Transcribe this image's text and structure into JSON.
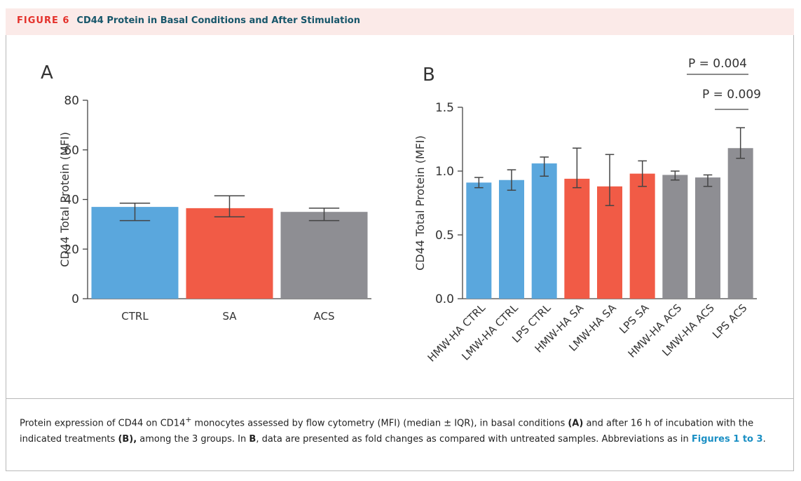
{
  "header": {
    "label": "FIGURE 6",
    "title": "CD44 Protein in Basal Conditions and After Stimulation"
  },
  "chart_data": [
    {
      "type": "bar",
      "title": "A",
      "ylabel": "CD44 Total Protein (MFI)",
      "categories": [
        "CTRL",
        "SA",
        "ACS"
      ],
      "values": [
        37,
        36.5,
        35
      ],
      "q1": [
        31.5,
        33,
        31.5
      ],
      "q3": [
        38.5,
        41.5,
        36.5
      ],
      "colors": [
        "#5aa7dd",
        "#f15b46",
        "#8e8e93"
      ],
      "ylim": [
        0,
        80
      ],
      "yticks": [
        0,
        20,
        40,
        60,
        80
      ]
    },
    {
      "type": "bar",
      "title": "B",
      "ylabel": "CD44 Total Protein (MFI)",
      "categories": [
        "HMW-HA CTRL",
        "LMW-HA CTRL",
        "LPS CTRL",
        "HMW-HA SA",
        "LMW-HA SA",
        "LPS SA",
        "HMW-HA ACS",
        "LMW-HA ACS",
        "LPS ACS"
      ],
      "values": [
        0.91,
        0.93,
        1.06,
        0.94,
        0.88,
        0.98,
        0.97,
        0.95,
        1.18
      ],
      "q1": [
        0.87,
        0.85,
        0.96,
        0.87,
        0.73,
        0.88,
        0.93,
        0.88,
        1.1
      ],
      "q3": [
        0.95,
        1.01,
        1.11,
        1.18,
        1.13,
        1.08,
        1.0,
        0.97,
        1.34
      ],
      "colors": [
        "#5aa7dd",
        "#5aa7dd",
        "#5aa7dd",
        "#f15b46",
        "#f15b46",
        "#f15b46",
        "#8e8e93",
        "#8e8e93",
        "#8e8e93"
      ],
      "ylim": [
        0,
        1.5
      ],
      "yticks": [
        {
          "value": 0,
          "label": "0.0"
        },
        0.5,
        {
          "value": 1,
          "label": "1.0"
        },
        1.5
      ],
      "annotations": [
        "P = 0.004",
        "P = 0.009"
      ]
    }
  ],
  "caption": [
    "Protein expression of CD44 on CD14",
    "+",
    " monocytes assessed by flow cytometry (MFI) (median ± IQR), in basal conditions ",
    "(A)",
    " and after 16 h of incubation with the indicated treatments ",
    "(B),",
    " among the 3 groups. In ",
    "B",
    ", data are presented as fold changes as compared with untreated samples. Abbreviations as in ",
    "Figures 1 to 3",
    "."
  ]
}
